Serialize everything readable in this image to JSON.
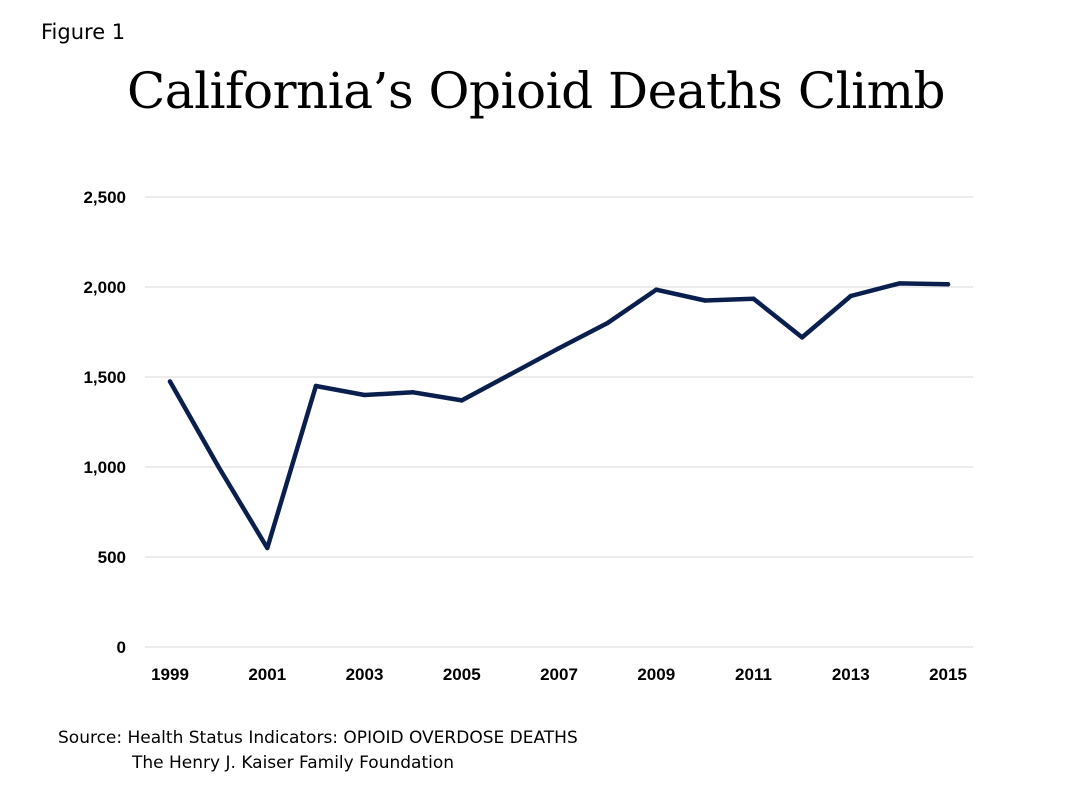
{
  "figure_label": "Figure 1",
  "source": {
    "line1": "Source:  Health Status Indicators: OPIOID OVERDOSE DEATHS",
    "line2": "The Henry J. Kaiser Family Foundation"
  },
  "chart_data": {
    "type": "line",
    "title": "California’s Opioid Deaths Climb",
    "xlabel": "",
    "ylabel": "",
    "x": [
      1999,
      2000,
      2001,
      2002,
      2003,
      2004,
      2005,
      2006,
      2007,
      2008,
      2009,
      2010,
      2011,
      2012,
      2013,
      2014,
      2015
    ],
    "series": [
      {
        "values": [
          1475,
          1000,
          550,
          1450,
          1400,
          1415,
          1370,
          1515,
          1660,
          1800,
          1985,
          1925,
          1935,
          1720,
          1950,
          2020,
          2015
        ]
      }
    ],
    "ylim": [
      0,
      2500
    ],
    "yticks": [
      0,
      500,
      1000,
      1500,
      2000,
      2500
    ],
    "ytick_labels": [
      "0",
      "500",
      "1,000",
      "1,500",
      "2,000",
      "2,500"
    ],
    "xticks": [
      1999,
      2001,
      2003,
      2005,
      2007,
      2009,
      2011,
      2013,
      2015
    ],
    "xtick_labels": [
      "1999",
      "2001",
      "2003",
      "2005",
      "2007",
      "2009",
      "2011",
      "2013",
      "2015"
    ],
    "grid": true,
    "legend": "none",
    "line_color": "#0b1f4f",
    "grid_color": "#d9d9d9"
  }
}
